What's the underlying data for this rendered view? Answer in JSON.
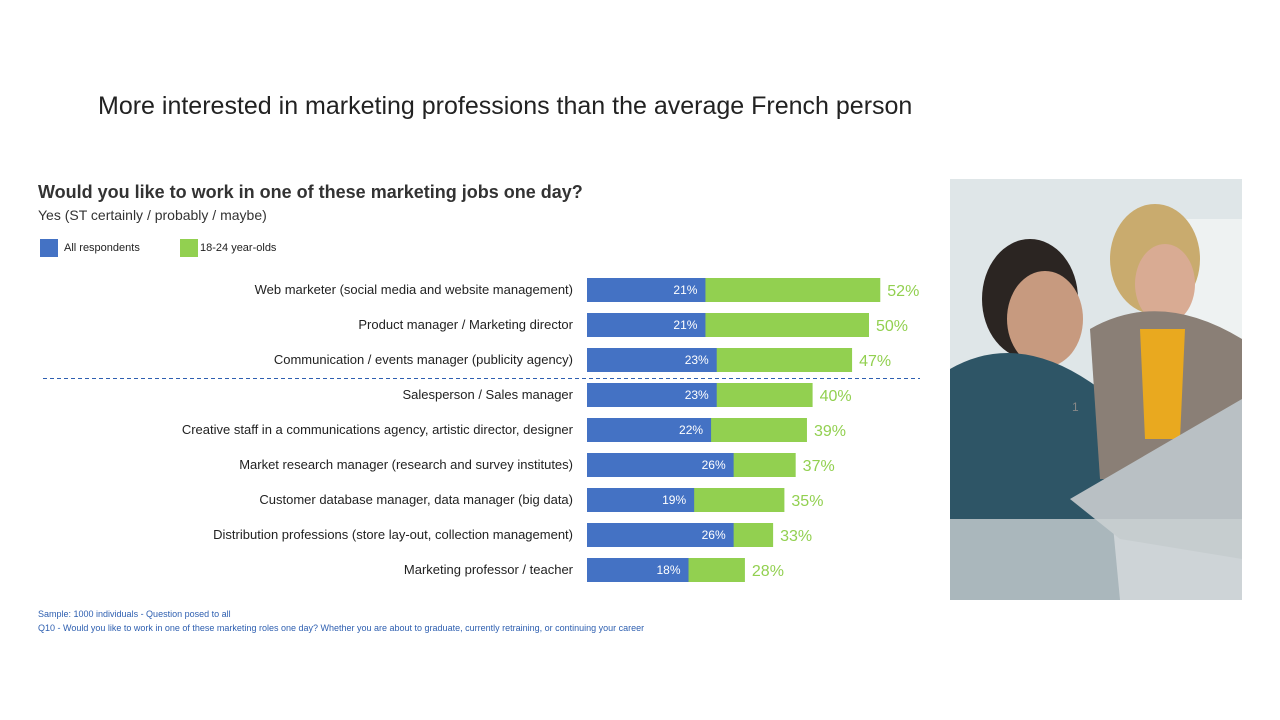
{
  "slide": {
    "title": "More interested in marketing professions than the average French person",
    "page_number": "1"
  },
  "chart_data": {
    "type": "bar",
    "title": "Would you like to work in one of these marketing jobs one day?",
    "subtitle": "Yes (ST certainly / probably / maybe)",
    "categories": [
      "Web marketer (social media and website management)",
      "Product manager / Marketing director",
      "Communication / events manager (publicity agency)",
      "Salesperson / Sales manager",
      "Creative staff in a communications agency, artistic director, designer",
      "Market research manager (research and survey institutes)",
      "Customer database manager, data manager (big data)",
      "Distribution professions (store lay-out, collection management)",
      "Marketing professor / teacher"
    ],
    "series": [
      {
        "name": "All respondents",
        "color": "#4472c4",
        "values": [
          21,
          21,
          23,
          23,
          22,
          26,
          19,
          26,
          18
        ]
      },
      {
        "name": "18-24 year-olds",
        "color": "#92d050",
        "values": [
          52,
          50,
          47,
          40,
          39,
          37,
          35,
          33,
          28
        ]
      }
    ],
    "unit": "%",
    "separator_after_index": 2,
    "legend": "top-left"
  },
  "footnotes": [
    "Sample: 1000 individuals - Question posed to all",
    "Q10 - Would you like to work in one of these marketing roles one day? Whether you are about to graduate, currently retraining, or continuing your career"
  ]
}
